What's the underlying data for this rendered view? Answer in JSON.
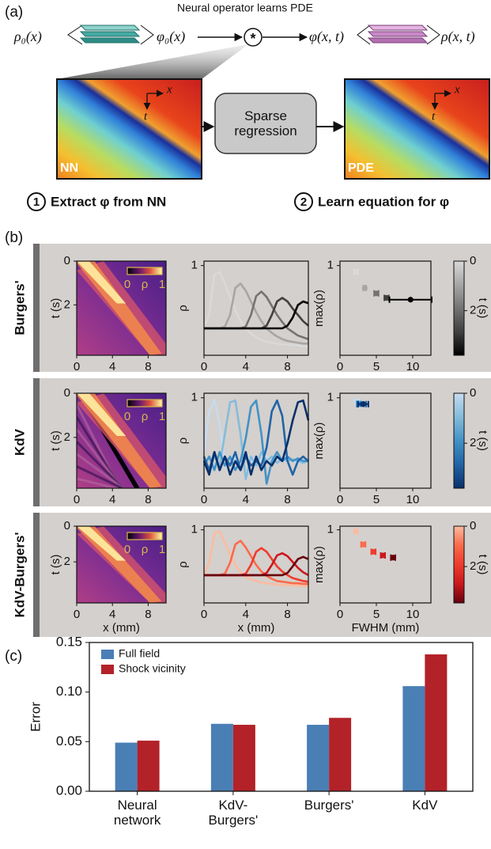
{
  "panel_labels": [
    "(a)",
    "(b)",
    "(c)"
  ],
  "diagram": {
    "title": "Neural operator learns PDE",
    "input": "ρ₀(x)",
    "initial": "φ₀(x)",
    "operator": "*",
    "output": "φ(x, t)",
    "density": "ρ(x, t)",
    "box": "Sparse regression",
    "left_image_label": "NN",
    "right_image_label": "PDE",
    "axis_x": "x",
    "axis_t": "t",
    "steps": [
      {
        "number": "1",
        "text": "Extract φ from NN"
      },
      {
        "number": "2",
        "text": "Learn equation for φ"
      }
    ]
  },
  "chart_data": [
    {
      "type": "heatmap",
      "row_label": "Burgers'",
      "xlim": [
        0,
        10
      ],
      "xticks": [
        0,
        4,
        8
      ],
      "ylim": [
        0,
        4.3
      ],
      "yticks": [
        0,
        2
      ],
      "yaxis_inverted": true,
      "ylabel": "t (s)",
      "colorbar": {
        "label": "ρ",
        "lim": [
          0,
          1
        ],
        "ticks": [
          0,
          1
        ]
      }
    },
    {
      "type": "line",
      "x": [
        0,
        0.5,
        1,
        1.5,
        2,
        2.5,
        3,
        3.5,
        4,
        4.5,
        5,
        5.5,
        6,
        6.5,
        7,
        7.5,
        8,
        8.5,
        9,
        9.5,
        10
      ],
      "xlim": [
        0,
        10
      ],
      "xticks": [
        0,
        4,
        8
      ],
      "ylim": [
        0,
        1.05
      ],
      "yticks": [
        1
      ],
      "ylabel": "ρ",
      "series": [
        {
          "color": "#d9d9d9",
          "values": [
            0.32,
            0.45,
            0.9,
            0.93,
            0.8,
            0.65,
            0.5,
            0.38,
            0.3,
            0.24,
            0.2,
            0.17,
            0.15,
            0.14,
            0.13,
            0.12,
            0.12,
            0.11,
            0.11,
            0.1,
            0.1
          ]
        },
        {
          "color": "#a6a6a6",
          "values": [
            0.3,
            0.3,
            0.3,
            0.3,
            0.32,
            0.45,
            0.75,
            0.8,
            0.72,
            0.6,
            0.48,
            0.38,
            0.3,
            0.25,
            0.21,
            0.18,
            0.16,
            0.15,
            0.14,
            0.13,
            0.13
          ]
        },
        {
          "color": "#737373",
          "values": [
            0.3,
            0.3,
            0.3,
            0.3,
            0.3,
            0.3,
            0.3,
            0.3,
            0.32,
            0.45,
            0.66,
            0.71,
            0.65,
            0.55,
            0.45,
            0.37,
            0.3,
            0.26,
            0.22,
            0.2,
            0.18
          ]
        },
        {
          "color": "#404040",
          "values": [
            0.3,
            0.3,
            0.3,
            0.3,
            0.3,
            0.3,
            0.3,
            0.3,
            0.3,
            0.3,
            0.3,
            0.3,
            0.33,
            0.45,
            0.6,
            0.64,
            0.6,
            0.52,
            0.45,
            0.38,
            0.33
          ]
        },
        {
          "color": "#000000",
          "values": [
            0.3,
            0.3,
            0.3,
            0.3,
            0.3,
            0.3,
            0.3,
            0.3,
            0.3,
            0.3,
            0.3,
            0.3,
            0.3,
            0.3,
            0.3,
            0.3,
            0.33,
            0.42,
            0.56,
            0.6,
            0.58
          ]
        }
      ]
    },
    {
      "type": "scatter",
      "x": [
        2.2,
        3.4,
        5.0,
        6.4,
        9.7
      ],
      "values": [
        0.93,
        0.75,
        0.69,
        0.64,
        0.62
      ],
      "xerr": [
        0.3,
        0.2,
        0.3,
        0.3,
        2.9
      ],
      "colors": [
        "#d9d9d9",
        "#a6a6a6",
        "#737373",
        "#404040",
        "#000000"
      ],
      "xlim": [
        0,
        12.5
      ],
      "xticks": [
        0,
        5,
        10
      ],
      "ylim": [
        0,
        1.05
      ],
      "yticks": [
        1
      ],
      "ylabel": "max(ρ)",
      "colorbar": {
        "label": "t (s)",
        "lim": [
          0,
          3.8
        ],
        "ticks": [
          0,
          2
        ]
      }
    },
    {
      "type": "heatmap",
      "row_label": "KdV",
      "xlim": [
        0,
        10
      ],
      "xticks": [
        0,
        4,
        8
      ],
      "ylim": [
        0,
        4.3
      ],
      "yticks": [
        0,
        2
      ],
      "yaxis_inverted": true,
      "ylabel": "t (s)",
      "colorbar": {
        "label": "ρ",
        "lim": [
          0,
          1
        ],
        "ticks": [
          0,
          1
        ]
      }
    },
    {
      "type": "line",
      "x": [
        0,
        0.5,
        1,
        1.5,
        2,
        2.5,
        3,
        3.5,
        4,
        4.5,
        5,
        5.5,
        6,
        6.5,
        7,
        7.5,
        8,
        8.5,
        9,
        9.5,
        10
      ],
      "xlim": [
        0,
        10
      ],
      "xticks": [
        0,
        4,
        8
      ],
      "ylim": [
        0,
        1.05
      ],
      "yticks": [
        1
      ],
      "ylabel": "ρ",
      "series": [
        {
          "color": "#c6dbef",
          "values": [
            0.4,
            0.85,
            0.98,
            0.7,
            0.3,
            0.15,
            0.35,
            0.25,
            0.4,
            0.3,
            0.35,
            0.3,
            0.35,
            0.3,
            0.32,
            0.3,
            0.33,
            0.3,
            0.28,
            0.3,
            0.3
          ]
        },
        {
          "color": "#85bcdb",
          "values": [
            0.3,
            0.2,
            0.35,
            0.25,
            0.6,
            0.95,
            0.97,
            0.6,
            0.1,
            0.35,
            0.25,
            0.4,
            0.3,
            0.35,
            0.28,
            0.33,
            0.3,
            0.32,
            0.3,
            0.28,
            0.3
          ]
        },
        {
          "color": "#4292c6",
          "values": [
            0.25,
            0.35,
            0.2,
            0.4,
            0.25,
            0.35,
            0.2,
            0.3,
            0.55,
            0.9,
            0.97,
            0.6,
            0.05,
            0.3,
            0.4,
            0.3,
            0.35,
            0.3,
            0.33,
            0.3,
            0.3
          ]
        },
        {
          "color": "#2163a6",
          "values": [
            0.35,
            0.2,
            0.4,
            0.2,
            0.35,
            0.25,
            0.4,
            0.2,
            0.35,
            0.25,
            0.3,
            0.25,
            0.45,
            0.85,
            0.97,
            0.8,
            0.3,
            0.15,
            0.3,
            0.35,
            0.3
          ]
        },
        {
          "color": "#08306b",
          "values": [
            0.3,
            0.15,
            0.4,
            0.2,
            0.35,
            0.15,
            0.3,
            0.2,
            0.4,
            0.15,
            0.35,
            0.2,
            0.3,
            0.25,
            0.35,
            0.3,
            0.5,
            0.75,
            0.95,
            0.97,
            0.75
          ]
        }
      ]
    },
    {
      "type": "scatter",
      "x": [
        2.3,
        2.6,
        2.8,
        3.0,
        3.2
      ],
      "values": [
        0.96,
        0.94,
        0.93,
        0.93,
        0.93
      ],
      "xerr": [
        0.3,
        0.3,
        0.5,
        0.6,
        0.7
      ],
      "colors": [
        "#c6dbef",
        "#85bcdb",
        "#4292c6",
        "#2163a6",
        "#08306b"
      ],
      "xlim": [
        0,
        12.5
      ],
      "xticks": [
        0,
        5,
        10
      ],
      "ylim": [
        0,
        1.05
      ],
      "yticks": [
        1
      ],
      "ylabel": "max(ρ)",
      "colorbar": {
        "label": "t (s)",
        "lim": [
          0,
          3.8
        ],
        "ticks": [
          0,
          2
        ]
      }
    },
    {
      "type": "heatmap",
      "row_label": "KdV-Burgers'",
      "xlim": [
        0,
        10
      ],
      "xticks": [
        0,
        4,
        8
      ],
      "ylim": [
        0,
        4.3
      ],
      "yticks": [
        0,
        2
      ],
      "yaxis_inverted": true,
      "ylabel": "t (s)",
      "xlabel": "x (mm)",
      "colorbar": {
        "label": "ρ",
        "lim": [
          0,
          1
        ],
        "ticks": [
          0,
          1
        ]
      }
    },
    {
      "type": "line",
      "x": [
        0,
        0.5,
        1,
        1.5,
        2,
        2.5,
        3,
        3.5,
        4,
        4.5,
        5,
        5.5,
        6,
        6.5,
        7,
        7.5,
        8,
        8.5,
        9,
        9.5,
        10
      ],
      "xlim": [
        0,
        10
      ],
      "xticks": [
        0,
        4,
        8
      ],
      "ylim": [
        0,
        1.05
      ],
      "yticks": [
        1
      ],
      "ylabel": "ρ",
      "xlabel": "x (mm)",
      "series": [
        {
          "color": "#fcbba1",
          "values": [
            0.38,
            0.55,
            0.95,
            0.98,
            0.82,
            0.66,
            0.52,
            0.42,
            0.36,
            0.32,
            0.3,
            0.28,
            0.27,
            0.26,
            0.25,
            0.25,
            0.24,
            0.24,
            0.24,
            0.23,
            0.23
          ]
        },
        {
          "color": "#fb6a4a",
          "values": [
            0.38,
            0.38,
            0.38,
            0.38,
            0.4,
            0.55,
            0.8,
            0.85,
            0.76,
            0.64,
            0.52,
            0.43,
            0.37,
            0.33,
            0.3,
            0.29,
            0.28,
            0.27,
            0.27,
            0.26,
            0.26
          ]
        },
        {
          "color": "#ef3b2c",
          "values": [
            0.38,
            0.38,
            0.38,
            0.38,
            0.38,
            0.38,
            0.38,
            0.38,
            0.4,
            0.52,
            0.7,
            0.75,
            0.7,
            0.6,
            0.5,
            0.43,
            0.38,
            0.34,
            0.32,
            0.3,
            0.29
          ]
        },
        {
          "color": "#cb181d",
          "values": [
            0.38,
            0.38,
            0.38,
            0.38,
            0.38,
            0.38,
            0.38,
            0.38,
            0.38,
            0.38,
            0.38,
            0.38,
            0.41,
            0.52,
            0.65,
            0.68,
            0.64,
            0.56,
            0.48,
            0.42,
            0.38
          ]
        },
        {
          "color": "#67000d",
          "values": [
            0.38,
            0.38,
            0.38,
            0.38,
            0.38,
            0.38,
            0.38,
            0.38,
            0.38,
            0.38,
            0.38,
            0.38,
            0.38,
            0.38,
            0.38,
            0.38,
            0.41,
            0.5,
            0.6,
            0.63,
            0.6
          ]
        }
      ]
    },
    {
      "type": "scatter",
      "x": [
        2.2,
        3.2,
        4.6,
        5.9,
        7.3
      ],
      "values": [
        0.98,
        0.8,
        0.7,
        0.65,
        0.62
      ],
      "xerr": [
        0.2,
        0.3,
        0.3,
        0.3,
        0.3
      ],
      "colors": [
        "#fcbba1",
        "#fb6a4a",
        "#ef3b2c",
        "#cb181d",
        "#67000d"
      ],
      "xlim": [
        0,
        12.5
      ],
      "xticks": [
        0,
        5,
        10
      ],
      "ylim": [
        0,
        1.05
      ],
      "yticks": [
        1
      ],
      "ylabel": "max(ρ)",
      "xlabel": "FWHM (mm)",
      "colorbar": {
        "label": "t (s)",
        "lim": [
          0,
          3.8
        ],
        "ticks": [
          0,
          2
        ]
      }
    },
    {
      "type": "bar",
      "categories": [
        "Neural network",
        "KdV-Burgers'",
        "Burgers'",
        "KdV"
      ],
      "ylabel": "Error",
      "legend": "upper-left",
      "ylim": [
        0,
        0.15
      ],
      "yticks": [
        {
          "value": 0,
          "label": "0.00"
        },
        0.05,
        {
          "value": 0.1,
          "label": "0.10"
        },
        0.15
      ],
      "series": [
        {
          "name": "Full field",
          "color": "#4a7fb5",
          "values": [
            0.049,
            0.068,
            0.067,
            0.106
          ]
        },
        {
          "name": "Shock vicinity",
          "color": "#b22228",
          "values": [
            0.051,
            0.067,
            0.074,
            0.138
          ]
        }
      ]
    }
  ]
}
